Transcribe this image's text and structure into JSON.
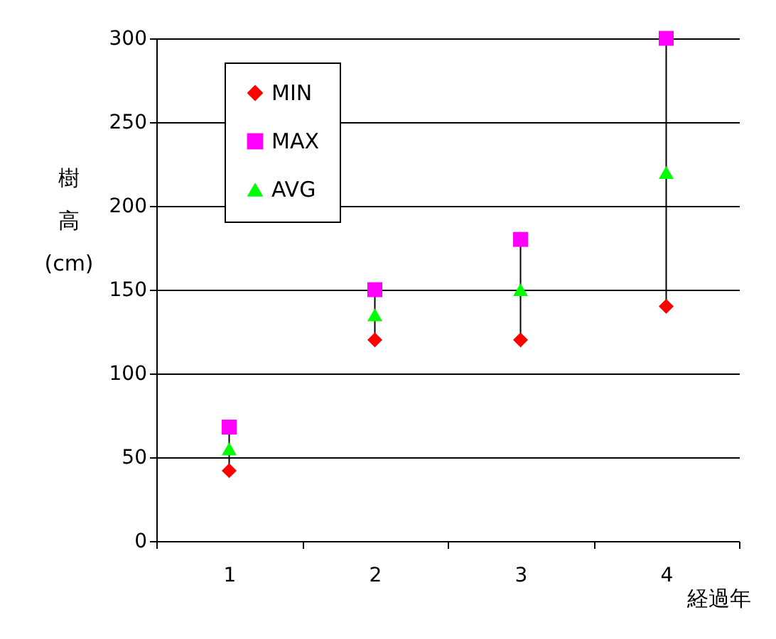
{
  "chart_data": {
    "type": "scatter",
    "xlabel": "経過年",
    "ylabel": "樹高(cm)",
    "categories": [
      "1",
      "2",
      "3",
      "4"
    ],
    "series": [
      {
        "name": "MIN",
        "color": "#ff0000",
        "marker": "diamond",
        "values": [
          42,
          120,
          120,
          140
        ]
      },
      {
        "name": "MAX",
        "color": "#ff00ff",
        "marker": "square",
        "values": [
          68,
          150,
          180,
          300
        ]
      },
      {
        "name": "AVG",
        "color": "#00ff00",
        "marker": "triangle",
        "values": [
          55,
          135,
          150,
          220
        ]
      }
    ],
    "ylim": [
      0,
      300
    ],
    "yticks": [
      0,
      50,
      100,
      150,
      200,
      250,
      300
    ],
    "grid": "y",
    "legend": "top left"
  }
}
